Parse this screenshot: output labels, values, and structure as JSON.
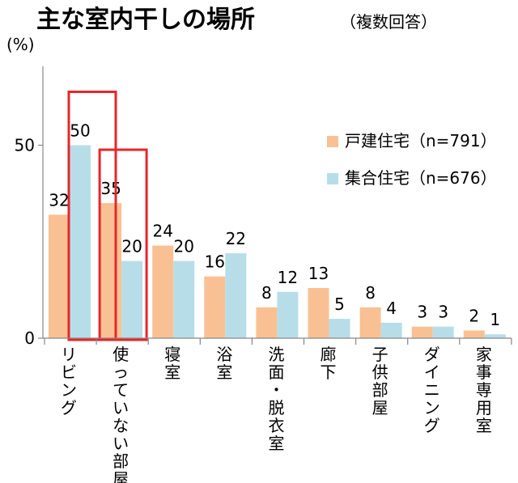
{
  "chart_data": {
    "type": "bar",
    "title": "主な室内干しの場所",
    "subtitle": "（複数回答）",
    "ylabel": "(%)",
    "ylim": [
      0,
      70
    ],
    "yticks": [
      "0",
      "50"
    ],
    "grid": false,
    "legend_position": "top-right",
    "categories": [
      "リビング",
      "使っていない部屋",
      "寝室",
      "浴室",
      "洗面・脱衣室",
      "廊下",
      "子供部屋",
      "ダイニング",
      "家事専用室"
    ],
    "series": [
      {
        "name": "戸建住宅（n=791）",
        "color": "#F9C193",
        "values": [
          32,
          35,
          24,
          16,
          8,
          13,
          8,
          3,
          2
        ]
      },
      {
        "name": "集合住宅（n=676）",
        "color": "#B7DEE8",
        "values": [
          50,
          20,
          20,
          22,
          12,
          5,
          4,
          3,
          1
        ]
      }
    ],
    "highlight_color": "#E8262A",
    "highlighted_categories": [
      0,
      1
    ]
  }
}
